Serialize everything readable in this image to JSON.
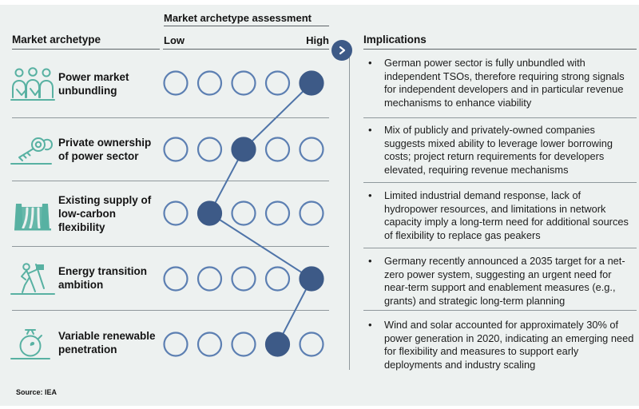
{
  "colors": {
    "background": "#edf1f0",
    "accent_navy": "#3d5a87",
    "dot_outline": "#5c7fb2",
    "connector": "#4f74a8",
    "teal": "#58b1a2",
    "divider_gray": "#8f989c",
    "header_line": "#5d6468",
    "text": "#141414"
  },
  "header": {
    "left_title": "Market archetype",
    "assessment_title": "Market archetype assessment",
    "scale_low": "Low",
    "scale_high": "High",
    "implications_title": "Implications"
  },
  "scale": {
    "points": 5
  },
  "rows": [
    {
      "icon": "people-icon",
      "archetype": "Power market unbundling",
      "rating": 5,
      "implication": "German power sector is fully unbundled with independent TSOs, therefore requiring strong signals for independent developers and in particular revenue mechanisms to enhance viability"
    },
    {
      "icon": "keys-icon",
      "archetype": "Private ownership of power sector",
      "rating": 3,
      "implication": "Mix of publicly and privately-owned companies suggests mixed ability to leverage lower borrowing costs; project return requirements for developers elevated, requiring revenue mechanisms"
    },
    {
      "icon": "dam-icon",
      "archetype": "Existing supply of low-carbon flexibility",
      "rating": 2,
      "implication": "Limited industrial demand response, lack of hydropower resources, and limitations in network capacity imply a long-term need for additional sources of flexibility to replace gas peakers"
    },
    {
      "icon": "climber-icon",
      "archetype": "Energy transition ambition",
      "rating": 5,
      "implication": "Germany recently announced a 2035 target for a net-zero power system, suggesting an urgent need for near-term support and enablement measures (e.g., grants) and strategic long-term planning"
    },
    {
      "icon": "stopwatch-icon",
      "archetype": "Variable renewable penetration",
      "rating": 4,
      "implication": "Wind and solar accounted for approximately 30% of power generation in 2020, indicating an emerging need for flexibility and measures to support early deployments and industry scaling"
    }
  ],
  "bullet_glyph": "•",
  "source": "Source: IEA"
}
